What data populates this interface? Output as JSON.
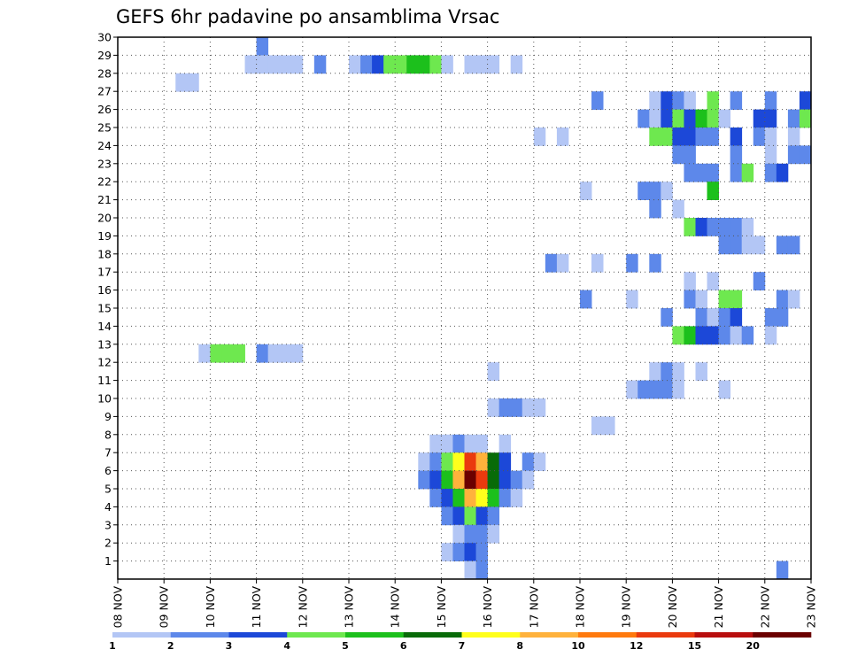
{
  "chart_data": {
    "type": "heatmap",
    "title": "GEFS 6hr padavine po ansamblima Vrsac",
    "xlabel": "",
    "ylabel": "",
    "x_ticks": [
      "08 NOV",
      "09 NOV",
      "10 NOV",
      "11 NOV",
      "12 NOV",
      "13 NOV",
      "14 NOV",
      "15 NOV",
      "16 NOV",
      "17 NOV",
      "18 NOV",
      "19 NOV",
      "20 NOV",
      "21 NOV",
      "22 NOV",
      "23 NOV"
    ],
    "y_ticks": [
      "1",
      "2",
      "3",
      "4",
      "5",
      "6",
      "7",
      "8",
      "9",
      "10",
      "11",
      "12",
      "13",
      "14",
      "15",
      "16",
      "17",
      "18",
      "19",
      "20",
      "21",
      "22",
      "23",
      "24",
      "25",
      "26",
      "27",
      "28",
      "29",
      "30"
    ],
    "xlim": [
      0,
      60
    ],
    "ylim": [
      0,
      30
    ],
    "grid": true,
    "colorbar": {
      "labels": [
        "1",
        "2",
        "3",
        "4",
        "5",
        "6",
        "7",
        "8",
        "10",
        "12",
        "15",
        "20"
      ],
      "colors": [
        "#b3c6f5",
        "#5d88ea",
        "#1c48d8",
        "#6ee84f",
        "#1cc01c",
        "#086b08",
        "#ffff1c",
        "#ffb23c",
        "#ff7a0e",
        "#ea3a0e",
        "#b80e0e",
        "#6b0000"
      ]
    },
    "cells": [
      {
        "x": 12,
        "y": 30,
        "c": 2
      },
      {
        "x": 11,
        "y": 29,
        "c": 1
      },
      {
        "x": 12,
        "y": 29,
        "c": 1
      },
      {
        "x": 13,
        "y": 29,
        "c": 1
      },
      {
        "x": 14,
        "y": 29,
        "c": 1
      },
      {
        "x": 15,
        "y": 29,
        "c": 1
      },
      {
        "x": 17,
        "y": 29,
        "c": 2
      },
      {
        "x": 20,
        "y": 29,
        "c": 1
      },
      {
        "x": 21,
        "y": 29,
        "c": 2
      },
      {
        "x": 22,
        "y": 29,
        "c": 3
      },
      {
        "x": 23,
        "y": 29,
        "c": 4
      },
      {
        "x": 24,
        "y": 29,
        "c": 4
      },
      {
        "x": 25,
        "y": 29,
        "c": 5
      },
      {
        "x": 26,
        "y": 29,
        "c": 5
      },
      {
        "x": 27,
        "y": 29,
        "c": 4
      },
      {
        "x": 28,
        "y": 29,
        "c": 1
      },
      {
        "x": 30,
        "y": 29,
        "c": 1
      },
      {
        "x": 31,
        "y": 29,
        "c": 1
      },
      {
        "x": 32,
        "y": 29,
        "c": 1
      },
      {
        "x": 34,
        "y": 29,
        "c": 1
      },
      {
        "x": 5,
        "y": 28,
        "c": 1
      },
      {
        "x": 6,
        "y": 28,
        "c": 1
      },
      {
        "x": 41,
        "y": 27,
        "c": 2
      },
      {
        "x": 46,
        "y": 27,
        "c": 1
      },
      {
        "x": 47,
        "y": 27,
        "c": 3
      },
      {
        "x": 48,
        "y": 27,
        "c": 2
      },
      {
        "x": 49,
        "y": 27,
        "c": 1
      },
      {
        "x": 51,
        "y": 27,
        "c": 4
      },
      {
        "x": 53,
        "y": 27,
        "c": 2
      },
      {
        "x": 56,
        "y": 27,
        "c": 2
      },
      {
        "x": 59,
        "y": 27,
        "c": 3
      },
      {
        "x": 45,
        "y": 26,
        "c": 2
      },
      {
        "x": 46,
        "y": 26,
        "c": 1
      },
      {
        "x": 47,
        "y": 26,
        "c": 3
      },
      {
        "x": 48,
        "y": 26,
        "c": 4
      },
      {
        "x": 49,
        "y": 26,
        "c": 3
      },
      {
        "x": 50,
        "y": 26,
        "c": 5
      },
      {
        "x": 51,
        "y": 26,
        "c": 4
      },
      {
        "x": 52,
        "y": 26,
        "c": 1
      },
      {
        "x": 55,
        "y": 26,
        "c": 3
      },
      {
        "x": 56,
        "y": 26,
        "c": 3
      },
      {
        "x": 58,
        "y": 26,
        "c": 2
      },
      {
        "x": 59,
        "y": 26,
        "c": 4
      },
      {
        "x": 36,
        "y": 25,
        "c": 1
      },
      {
        "x": 38,
        "y": 25,
        "c": 1
      },
      {
        "x": 46,
        "y": 25,
        "c": 4
      },
      {
        "x": 47,
        "y": 25,
        "c": 4
      },
      {
        "x": 48,
        "y": 25,
        "c": 3
      },
      {
        "x": 49,
        "y": 25,
        "c": 3
      },
      {
        "x": 50,
        "y": 25,
        "c": 2
      },
      {
        "x": 51,
        "y": 25,
        "c": 2
      },
      {
        "x": 53,
        "y": 25,
        "c": 3
      },
      {
        "x": 55,
        "y": 25,
        "c": 2
      },
      {
        "x": 56,
        "y": 25,
        "c": 1
      },
      {
        "x": 58,
        "y": 25,
        "c": 1
      },
      {
        "x": 48,
        "y": 24,
        "c": 2
      },
      {
        "x": 49,
        "y": 24,
        "c": 2
      },
      {
        "x": 53,
        "y": 24,
        "c": 2
      },
      {
        "x": 56,
        "y": 24,
        "c": 1
      },
      {
        "x": 58,
        "y": 24,
        "c": 2
      },
      {
        "x": 59,
        "y": 24,
        "c": 2
      },
      {
        "x": 49,
        "y": 23,
        "c": 2
      },
      {
        "x": 50,
        "y": 23,
        "c": 2
      },
      {
        "x": 51,
        "y": 23,
        "c": 2
      },
      {
        "x": 53,
        "y": 23,
        "c": 2
      },
      {
        "x": 54,
        "y": 23,
        "c": 4
      },
      {
        "x": 56,
        "y": 23,
        "c": 2
      },
      {
        "x": 57,
        "y": 23,
        "c": 3
      },
      {
        "x": 40,
        "y": 22,
        "c": 1
      },
      {
        "x": 45,
        "y": 22,
        "c": 2
      },
      {
        "x": 46,
        "y": 22,
        "c": 2
      },
      {
        "x": 47,
        "y": 22,
        "c": 1
      },
      {
        "x": 51,
        "y": 22,
        "c": 5
      },
      {
        "x": 46,
        "y": 21,
        "c": 2
      },
      {
        "x": 48,
        "y": 21,
        "c": 1
      },
      {
        "x": 49,
        "y": 20,
        "c": 4
      },
      {
        "x": 50,
        "y": 20,
        "c": 3
      },
      {
        "x": 51,
        "y": 20,
        "c": 2
      },
      {
        "x": 52,
        "y": 20,
        "c": 2
      },
      {
        "x": 53,
        "y": 20,
        "c": 2
      },
      {
        "x": 54,
        "y": 20,
        "c": 1
      },
      {
        "x": 52,
        "y": 19,
        "c": 2
      },
      {
        "x": 53,
        "y": 19,
        "c": 2
      },
      {
        "x": 54,
        "y": 19,
        "c": 1
      },
      {
        "x": 55,
        "y": 19,
        "c": 1
      },
      {
        "x": 57,
        "y": 19,
        "c": 2
      },
      {
        "x": 58,
        "y": 19,
        "c": 2
      },
      {
        "x": 37,
        "y": 18,
        "c": 2
      },
      {
        "x": 38,
        "y": 18,
        "c": 1
      },
      {
        "x": 41,
        "y": 18,
        "c": 1
      },
      {
        "x": 44,
        "y": 18,
        "c": 2
      },
      {
        "x": 46,
        "y": 18,
        "c": 2
      },
      {
        "x": 49,
        "y": 17,
        "c": 1
      },
      {
        "x": 51,
        "y": 17,
        "c": 1
      },
      {
        "x": 55,
        "y": 17,
        "c": 2
      },
      {
        "x": 40,
        "y": 16,
        "c": 2
      },
      {
        "x": 44,
        "y": 16,
        "c": 1
      },
      {
        "x": 49,
        "y": 16,
        "c": 2
      },
      {
        "x": 50,
        "y": 16,
        "c": 1
      },
      {
        "x": 52,
        "y": 16,
        "c": 4
      },
      {
        "x": 53,
        "y": 16,
        "c": 4
      },
      {
        "x": 57,
        "y": 16,
        "c": 2
      },
      {
        "x": 58,
        "y": 16,
        "c": 1
      },
      {
        "x": 47,
        "y": 15,
        "c": 2
      },
      {
        "x": 50,
        "y": 15,
        "c": 2
      },
      {
        "x": 51,
        "y": 15,
        "c": 1
      },
      {
        "x": 52,
        "y": 15,
        "c": 2
      },
      {
        "x": 53,
        "y": 15,
        "c": 3
      },
      {
        "x": 56,
        "y": 15,
        "c": 2
      },
      {
        "x": 57,
        "y": 15,
        "c": 2
      },
      {
        "x": 48,
        "y": 14,
        "c": 4
      },
      {
        "x": 49,
        "y": 14,
        "c": 5
      },
      {
        "x": 50,
        "y": 14,
        "c": 3
      },
      {
        "x": 51,
        "y": 14,
        "c": 3
      },
      {
        "x": 52,
        "y": 14,
        "c": 2
      },
      {
        "x": 53,
        "y": 14,
        "c": 1
      },
      {
        "x": 54,
        "y": 14,
        "c": 2
      },
      {
        "x": 56,
        "y": 14,
        "c": 1
      },
      {
        "x": 7,
        "y": 13,
        "c": 1
      },
      {
        "x": 8,
        "y": 13,
        "c": 4
      },
      {
        "x": 9,
        "y": 13,
        "c": 4
      },
      {
        "x": 10,
        "y": 13,
        "c": 4
      },
      {
        "x": 12,
        "y": 13,
        "c": 2
      },
      {
        "x": 13,
        "y": 13,
        "c": 1
      },
      {
        "x": 14,
        "y": 13,
        "c": 1
      },
      {
        "x": 15,
        "y": 13,
        "c": 1
      },
      {
        "x": 32,
        "y": 12,
        "c": 1
      },
      {
        "x": 46,
        "y": 12,
        "c": 1
      },
      {
        "x": 47,
        "y": 12,
        "c": 2
      },
      {
        "x": 48,
        "y": 12,
        "c": 1
      },
      {
        "x": 50,
        "y": 12,
        "c": 1
      },
      {
        "x": 44,
        "y": 11,
        "c": 1
      },
      {
        "x": 45,
        "y": 11,
        "c": 2
      },
      {
        "x": 46,
        "y": 11,
        "c": 2
      },
      {
        "x": 47,
        "y": 11,
        "c": 2
      },
      {
        "x": 48,
        "y": 11,
        "c": 1
      },
      {
        "x": 52,
        "y": 11,
        "c": 1
      },
      {
        "x": 32,
        "y": 10,
        "c": 1
      },
      {
        "x": 33,
        "y": 10,
        "c": 2
      },
      {
        "x": 34,
        "y": 10,
        "c": 2
      },
      {
        "x": 35,
        "y": 10,
        "c": 1
      },
      {
        "x": 36,
        "y": 10,
        "c": 1
      },
      {
        "x": 41,
        "y": 9,
        "c": 1
      },
      {
        "x": 42,
        "y": 9,
        "c": 1
      },
      {
        "x": 27,
        "y": 8,
        "c": 1
      },
      {
        "x": 28,
        "y": 8,
        "c": 1
      },
      {
        "x": 29,
        "y": 8,
        "c": 2
      },
      {
        "x": 30,
        "y": 8,
        "c": 1
      },
      {
        "x": 31,
        "y": 8,
        "c": 1
      },
      {
        "x": 33,
        "y": 8,
        "c": 1
      },
      {
        "x": 26,
        "y": 7,
        "c": 1
      },
      {
        "x": 27,
        "y": 7,
        "c": 2
      },
      {
        "x": 28,
        "y": 7,
        "c": 4
      },
      {
        "x": 29,
        "y": 7,
        "c": 7
      },
      {
        "x": 30,
        "y": 7,
        "c": 12
      },
      {
        "x": 31,
        "y": 7,
        "c": 9
      },
      {
        "x": 32,
        "y": 7,
        "c": 6
      },
      {
        "x": 33,
        "y": 7,
        "c": 3
      },
      {
        "x": 35,
        "y": 7,
        "c": 2
      },
      {
        "x": 36,
        "y": 7,
        "c": 1
      },
      {
        "x": 26,
        "y": 6,
        "c": 2
      },
      {
        "x": 27,
        "y": 6,
        "c": 3
      },
      {
        "x": 28,
        "y": 6,
        "c": 5
      },
      {
        "x": 29,
        "y": 6,
        "c": 9
      },
      {
        "x": 30,
        "y": 6,
        "c": 20
      },
      {
        "x": 31,
        "y": 6,
        "c": 12
      },
      {
        "x": 32,
        "y": 6,
        "c": 6
      },
      {
        "x": 33,
        "y": 6,
        "c": 3
      },
      {
        "x": 34,
        "y": 6,
        "c": 2
      },
      {
        "x": 35,
        "y": 6,
        "c": 1
      },
      {
        "x": 27,
        "y": 5,
        "c": 2
      },
      {
        "x": 28,
        "y": 5,
        "c": 3
      },
      {
        "x": 29,
        "y": 5,
        "c": 5
      },
      {
        "x": 30,
        "y": 5,
        "c": 8
      },
      {
        "x": 31,
        "y": 5,
        "c": 7
      },
      {
        "x": 32,
        "y": 5,
        "c": 5
      },
      {
        "x": 33,
        "y": 5,
        "c": 2
      },
      {
        "x": 34,
        "y": 5,
        "c": 1
      },
      {
        "x": 28,
        "y": 4,
        "c": 2
      },
      {
        "x": 29,
        "y": 4,
        "c": 3
      },
      {
        "x": 30,
        "y": 4,
        "c": 4
      },
      {
        "x": 31,
        "y": 4,
        "c": 3
      },
      {
        "x": 32,
        "y": 4,
        "c": 2
      },
      {
        "x": 29,
        "y": 3,
        "c": 1
      },
      {
        "x": 30,
        "y": 3,
        "c": 2
      },
      {
        "x": 31,
        "y": 3,
        "c": 2
      },
      {
        "x": 32,
        "y": 3,
        "c": 1
      },
      {
        "x": 28,
        "y": 2,
        "c": 1
      },
      {
        "x": 29,
        "y": 2,
        "c": 2
      },
      {
        "x": 30,
        "y": 2,
        "c": 3
      },
      {
        "x": 31,
        "y": 2,
        "c": 2
      },
      {
        "x": 30,
        "y": 1,
        "c": 1
      },
      {
        "x": 31,
        "y": 1,
        "c": 2
      },
      {
        "x": 57,
        "y": 1,
        "c": 2
      }
    ]
  }
}
